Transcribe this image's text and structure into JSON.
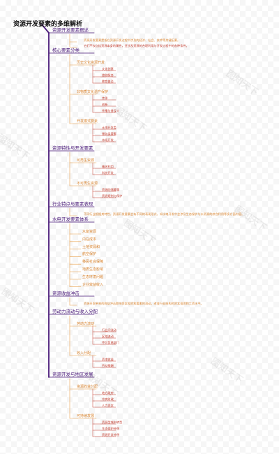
{
  "title": "资源开发要素的多维解析",
  "watermark": "图知天下",
  "colors": {
    "trunk": "#4a1a7a",
    "branch2": "#e8a04a",
    "branch3": "#c0392b",
    "text2": "#d9822b",
    "text3": "#c0392b"
  },
  "sections": [
    {
      "label": "资源开发要素概述",
      "notes": [
        {
          "text": "资源开发要素是指在资源开发过程中涉及的经济、社会、技术等关键因素。",
          "color": "#d9822b"
        },
        {
          "text": "它们不仅包括资源本身的属性，还涉及资源的合理利用与开发过程中的各种条件。",
          "color": "#c0392b"
        }
      ]
    },
    {
      "label": "核心要素分类",
      "groups": [
        {
          "label": "历史文化资源开发",
          "items": [
            "文化创意",
            "旅游服务",
            "教育普及"
          ]
        },
        {
          "label": "非物质文化遗产保护",
          "items": [
            "传承",
            "创新",
            "传播与普及人"
          ]
        },
        {
          "label": "开发模式要素",
          "items": [
            "土地开发类",
            "服务类要素",
            "市场开发"
          ]
        }
      ]
    },
    {
      "label": "资源特性与开发要素",
      "groups": [
        {
          "label": "可再生资源",
          "items": [
            "循环利用",
            "科技开发"
          ]
        },
        {
          "label": "不可再生资源",
          "items": [
            "资源的储藏量",
            "资源规划与保护"
          ]
        }
      ]
    },
    {
      "label": "行业特点与要素表现",
      "notes": [
        {
          "text": "不同行业根据其特性，资源开发要素会有不同的表现形式，如水电开发中会涉及生态保护与水资源的综合利用等多方面内容。",
          "color": "#d9822b"
        }
      ]
    },
    {
      "label": "水电开发要素体系",
      "leaves": [
        "水能资源",
        "内在成本",
        "土地资源和",
        "航空保护",
        "移民社会保障",
        "地质生态影响",
        "生态环境问题",
        "企业效益收入"
      ]
    },
    {
      "label": "资源收益冲击",
      "notes": [
        {
          "text": "资源开发带来的收益冲击影响资本投资和要素的流动，改变行业结构的资本投资和工资水平。",
          "color": "#d9822b"
        }
      ]
    },
    {
      "label": "劳动力流动与收入分配",
      "groups": [
        {
          "label": "劳动力流动",
          "items": [
            "行业间流动",
            "区域流动",
            "不可贸易部门"
          ]
        },
        {
          "label": "收入分配",
          "items": [
            "资本收益",
            "劳动报酬"
          ]
        }
      ]
    },
    {
      "label": "资源开发与地区发展",
      "groups": [
        {
          "label": "资源收益分配",
          "items": [
            "地方政府",
            "中央财政",
            "人力资本"
          ]
        },
        {
          "label": "可持续发展",
          "items": [
            "资源型城市转型",
            "生态保护补偿",
            "资源开发补偿"
          ]
        }
      ]
    }
  ]
}
